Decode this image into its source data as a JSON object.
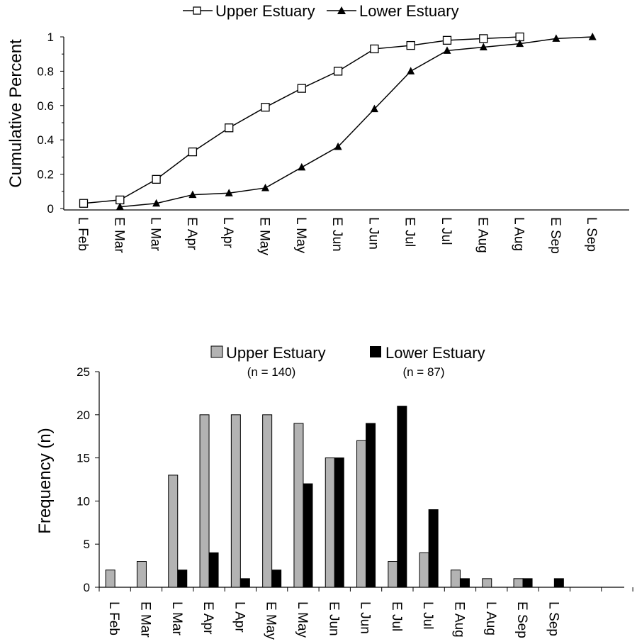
{
  "chart_data": [
    {
      "type": "line",
      "title": "",
      "xlabel": "",
      "ylabel": "Cumulative Percent",
      "ylim": [
        0,
        1
      ],
      "yticks": [
        "0",
        "0.2",
        "0.4",
        "0.6",
        "0.8",
        "1"
      ],
      "categories": [
        "L Feb",
        "E Mar",
        "L Mar",
        "E Apr",
        "L Apr",
        "E May",
        "L May",
        "E Jun",
        "L Jun",
        "E Jul",
        "L Jul",
        "E Aug",
        "L Aug",
        "E Sep",
        "L Sep"
      ],
      "legend_position": "top-center",
      "series": [
        {
          "name": "Upper Estuary",
          "marker": "open-square",
          "values": [
            0.03,
            0.05,
            0.17,
            0.33,
            0.47,
            0.59,
            0.7,
            0.8,
            0.93,
            0.95,
            0.98,
            0.99,
            1.0,
            null,
            null
          ]
        },
        {
          "name": "Lower Estuary",
          "marker": "filled-triangle",
          "values": [
            null,
            0.01,
            0.03,
            0.08,
            0.09,
            0.12,
            0.24,
            0.36,
            0.58,
            0.8,
            0.92,
            0.94,
            0.96,
            0.99,
            1.0
          ]
        }
      ]
    },
    {
      "type": "bar",
      "title": "",
      "xlabel": "",
      "ylabel": "Frequency (n)",
      "ylim": [
        0,
        25
      ],
      "yticks": [
        "0",
        "5",
        "10",
        "15",
        "20",
        "25"
      ],
      "categories": [
        "L Feb",
        "E Mar",
        "L Mar",
        "E Apr",
        "L Apr",
        "E May",
        "L May",
        "E Jun",
        "L Jun",
        "E Jul",
        "L Jul",
        "E Aug",
        "L Aug",
        "E Sep",
        "L Sep"
      ],
      "legend_position": "top-center",
      "series": [
        {
          "name": "Upper Estuary",
          "n_label": "(n = 140)",
          "color": "#b3b3b3",
          "values": [
            2,
            3,
            13,
            20,
            20,
            20,
            19,
            15,
            17,
            3,
            4,
            2,
            1,
            1,
            0
          ]
        },
        {
          "name": "Lower Estuary",
          "n_label": "(n = 87)",
          "color": "#000000",
          "values": [
            0,
            0,
            2,
            4,
            1,
            2,
            12,
            15,
            19,
            21,
            9,
            1,
            0,
            1,
            1
          ]
        }
      ]
    }
  ]
}
